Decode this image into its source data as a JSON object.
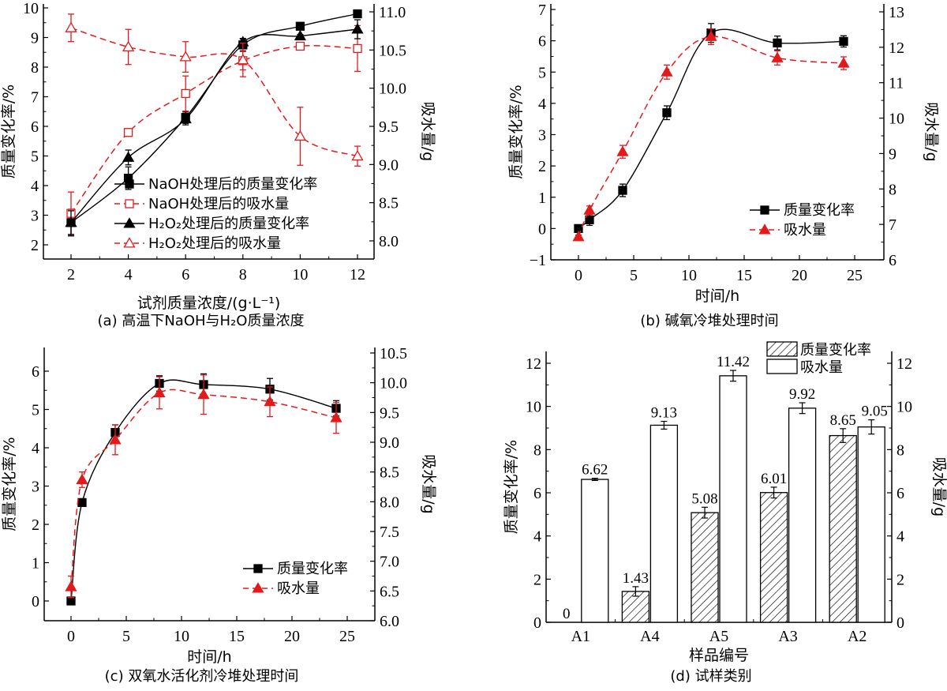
{
  "chart_data": [
    {
      "id": "a",
      "type": "line",
      "caption": "(a) 高温下NaOH与H₂O质量浓度",
      "xlabel": "试剂质量浓度/(g·L⁻¹)",
      "ylabel": "质量变化率/%",
      "y2label": "吸水量/g",
      "xlim": [
        1,
        13
      ],
      "ylim": [
        1.5,
        10
      ],
      "y2lim": [
        7.75,
        11.05
      ],
      "xticks": [
        2,
        4,
        6,
        8,
        10,
        12
      ],
      "xtick_labels": [
        "2",
        "4",
        "6",
        "8",
        "10",
        "12"
      ],
      "yticks": [
        2,
        3,
        4,
        5,
        6,
        7,
        8,
        9,
        10
      ],
      "ytick_labels": [
        "2",
        "3",
        "4",
        "5",
        "6",
        "7",
        "8",
        "9",
        "10"
      ],
      "y2ticks": [
        8.0,
        8.5,
        9.0,
        9.5,
        10.0,
        10.5,
        11.0
      ],
      "y2tick_labels": [
        "8.0",
        "8.5",
        "9.0",
        "9.5",
        "10.0",
        "10.5",
        "11.0"
      ],
      "legend_position": "bottom-right",
      "series": [
        {
          "name": "NaOH处理后的质量变化率",
          "axis": "left",
          "color": "#000000",
          "dash": false,
          "marker": "square-filled",
          "x": [
            2,
            4,
            6,
            8,
            10,
            12
          ],
          "y": [
            2.75,
            4.25,
            6.3,
            8.75,
            9.38,
            9.8
          ],
          "err": [
            0.45,
            0.38,
            0.2,
            0.2,
            0.1,
            0.08
          ]
        },
        {
          "name": "NaOH处理后的吸水量",
          "axis": "right",
          "color": "#e31a1c",
          "dash": true,
          "marker": "square-open",
          "x": [
            2,
            4,
            6,
            8,
            10,
            12
          ],
          "y": [
            8.36,
            9.42,
            9.93,
            10.36,
            10.55,
            10.52
          ],
          "err": [
            0.28,
            0.05,
            0.23,
            0.12,
            0.03,
            0.3
          ]
        },
        {
          "name": "H₂O₂处理后的质量变化率",
          "axis": "left",
          "color": "#000000",
          "dash": false,
          "marker": "triangle-filled",
          "x": [
            2,
            4,
            6,
            8,
            10,
            12
          ],
          "y": [
            2.75,
            4.95,
            6.25,
            8.85,
            9.05,
            9.28
          ],
          "err": [
            0.4,
            0.25,
            0.2,
            0.12,
            0.05,
            0.32
          ]
        },
        {
          "name": "H₂O₂处理后的吸水量",
          "axis": "right",
          "color": "#e31a1c",
          "dash": true,
          "marker": "triangle-open",
          "x": [
            2,
            4,
            6,
            8,
            10,
            12
          ],
          "y": [
            10.79,
            10.54,
            10.41,
            10.37,
            9.37,
            9.11
          ],
          "err": [
            0.18,
            0.23,
            0.2,
            0.22,
            0.38,
            0.13
          ]
        }
      ]
    },
    {
      "id": "b",
      "type": "line",
      "caption": "(b) 碱氧冷堆处理时间",
      "xlabel": "时间/h",
      "ylabel": "质量变化率/%",
      "y2label": "吸水量/g",
      "xlim": [
        -2.5,
        27.5
      ],
      "ylim": [
        -1,
        7
      ],
      "y2lim": [
        6,
        13
      ],
      "xticks": [
        0,
        5,
        10,
        15,
        20,
        25
      ],
      "xtick_labels": [
        "0",
        "5",
        "10",
        "15",
        "20",
        "25"
      ],
      "yticks": [
        -1,
        0,
        1,
        2,
        3,
        4,
        5,
        6,
        7
      ],
      "ytick_labels": [
        "−1",
        "0",
        "1",
        "2",
        "3",
        "4",
        "5",
        "6",
        "7"
      ],
      "y2ticks": [
        6,
        7,
        8,
        9,
        10,
        11,
        12,
        13
      ],
      "y2tick_labels": [
        "6",
        "7",
        "8",
        "9",
        "10",
        "11",
        "12",
        "13"
      ],
      "legend_position": "bottom-right",
      "series": [
        {
          "name": "质量变化率",
          "axis": "left",
          "color": "#000000",
          "dash": false,
          "marker": "square-filled",
          "x": [
            0,
            1,
            4,
            8,
            12,
            18,
            24
          ],
          "y": [
            0,
            0.28,
            1.22,
            3.7,
            6.25,
            5.93,
            5.98
          ],
          "err": [
            0.05,
            0.18,
            0.2,
            0.22,
            0.3,
            0.22,
            0.18
          ]
        },
        {
          "name": "吸水量",
          "axis": "right",
          "color": "#e31a1c",
          "dash": true,
          "marker": "triangle-filled",
          "x": [
            0,
            1,
            4,
            8,
            12,
            18,
            24
          ],
          "y": [
            6.65,
            7.4,
            9.05,
            11.3,
            12.3,
            11.7,
            11.55
          ],
          "err": [
            0.05,
            0.12,
            0.18,
            0.2,
            0.22,
            0.2,
            0.18
          ]
        }
      ]
    },
    {
      "id": "c",
      "type": "line",
      "caption": "(c) 双氧水活化剂冷堆处理时间",
      "xlabel": "时间/h",
      "ylabel": "质量变化率/%",
      "y2label": "吸水量/g",
      "xlim": [
        -2.5,
        27.5
      ],
      "ylim": [
        -0.5,
        6.5
      ],
      "y2lim": [
        6.0,
        10.5
      ],
      "xticks": [
        0,
        5,
        10,
        15,
        20,
        25
      ],
      "xtick_labels": [
        "0",
        "5",
        "10",
        "15",
        "20",
        "25"
      ],
      "yticks": [
        0,
        1,
        2,
        3,
        4,
        5,
        6
      ],
      "ytick_labels": [
        "0",
        "1",
        "2",
        "3",
        "4",
        "5",
        "6"
      ],
      "y2ticks": [
        6.0,
        6.5,
        7.0,
        7.5,
        8.0,
        8.5,
        9.0,
        9.5,
        10.0,
        10.5
      ],
      "y2tick_labels": [
        "6.0",
        "6.5",
        "7.0",
        "7.5",
        "8.0",
        "8.5",
        "9.0",
        "9.5",
        "10.0",
        "10.5"
      ],
      "legend_position": "bottom-right",
      "series": [
        {
          "name": "质量变化率",
          "axis": "left",
          "color": "#000000",
          "dash": false,
          "marker": "square-filled",
          "x": [
            0,
            1,
            4,
            8,
            12,
            18,
            24
          ],
          "y": [
            0,
            2.57,
            4.4,
            5.68,
            5.65,
            5.53,
            5.03
          ],
          "err": [
            0.02,
            0.05,
            0.2,
            0.2,
            0.28,
            0.28,
            0.2
          ]
        },
        {
          "name": "吸水量",
          "axis": "right",
          "color": "#e31a1c",
          "dash": true,
          "marker": "triangle-filled",
          "x": [
            0,
            1,
            4,
            8,
            12,
            18,
            24
          ],
          "y": [
            6.57,
            8.37,
            9.04,
            9.83,
            9.8,
            9.68,
            9.41
          ],
          "err": [
            0.18,
            0.13,
            0.25,
            0.27,
            0.33,
            0.25,
            0.26
          ]
        }
      ]
    },
    {
      "id": "d",
      "type": "bar",
      "caption": "(d) 试样类别",
      "xlabel": "样品编号",
      "ylabel": "质量变化率/%",
      "y2label": "吸水量/g",
      "categories": [
        "A1",
        "A4",
        "A5",
        "A3",
        "A2"
      ],
      "ylim": [
        0,
        12
      ],
      "y2lim": [
        0,
        12
      ],
      "yticks": [
        0,
        2,
        4,
        6,
        8,
        10,
        12
      ],
      "ytick_labels": [
        "0",
        "2",
        "4",
        "6",
        "8",
        "10",
        "12"
      ],
      "y2ticks": [
        0,
        2,
        4,
        6,
        8,
        10,
        12
      ],
      "y2tick_labels": [
        "0",
        "2",
        "4",
        "6",
        "8",
        "10",
        "12"
      ],
      "legend_position": "top-right",
      "series": [
        {
          "name": "质量变化率",
          "axis": "left",
          "fill": "hatched",
          "values": [
            0,
            1.43,
            5.08,
            6.01,
            8.65
          ],
          "labels": [
            "0",
            "1.43",
            "5.08",
            "6.01",
            "8.65"
          ],
          "err": [
            0,
            0.22,
            0.25,
            0.25,
            0.32
          ]
        },
        {
          "name": "吸水量",
          "axis": "right",
          "fill": "white",
          "values": [
            6.62,
            9.13,
            11.42,
            9.92,
            9.05
          ],
          "labels": [
            "6.62",
            "9.13",
            "11.42",
            "9.92",
            "9.05"
          ],
          "err": [
            0.05,
            0.18,
            0.25,
            0.25,
            0.33
          ]
        }
      ]
    }
  ]
}
